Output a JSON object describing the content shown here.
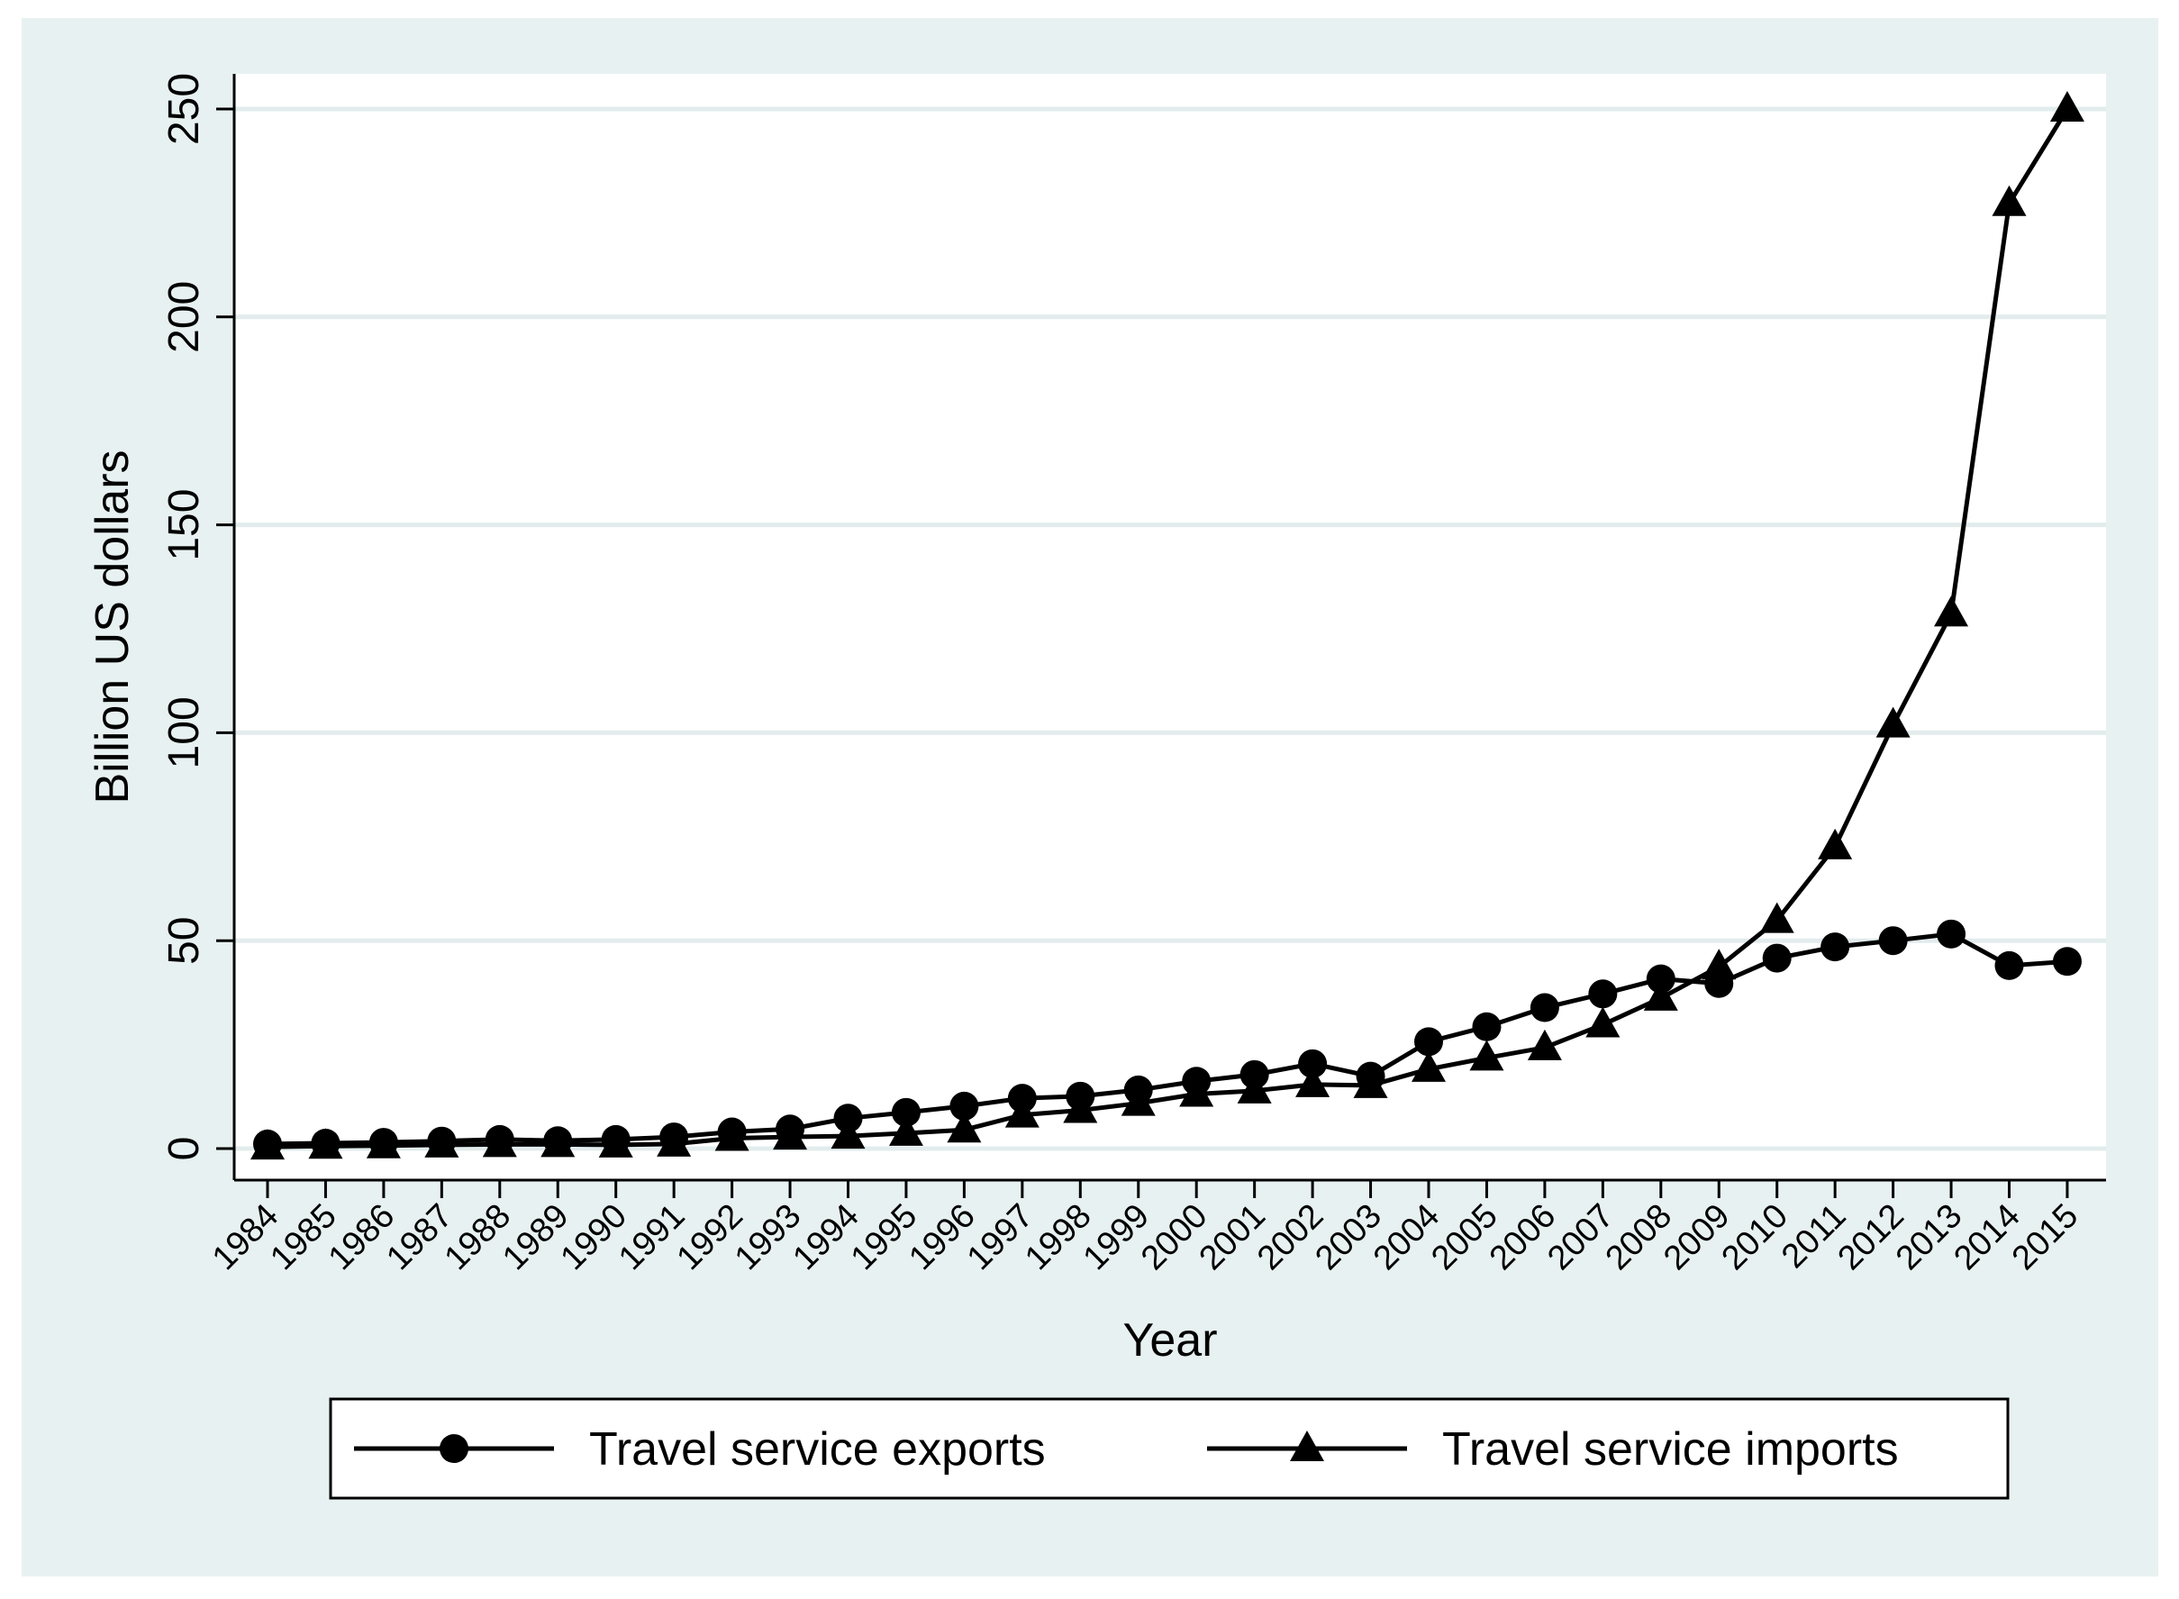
{
  "chart_data": {
    "type": "line",
    "title": "",
    "xlabel": "Year",
    "ylabel": "Billion US dollars",
    "ylim": [
      0,
      250
    ],
    "yticks": [
      "0",
      "50",
      "100",
      "150",
      "200",
      "250"
    ],
    "grid": true,
    "legend_position": "bottom",
    "categories": [
      "1984",
      "1985",
      "1986",
      "1987",
      "1988",
      "1989",
      "1990",
      "1991",
      "1992",
      "1993",
      "1994",
      "1995",
      "1996",
      "1997",
      "1998",
      "1999",
      "2000",
      "2001",
      "2002",
      "2003",
      "2004",
      "2005",
      "2006",
      "2007",
      "2008",
      "2009",
      "2010",
      "2011",
      "2012",
      "2013",
      "2014",
      "2015"
    ],
    "series": [
      {
        "name": "Travel service exports",
        "marker": "circle",
        "values": [
          1.1,
          1.3,
          1.5,
          1.8,
          2.2,
          1.9,
          2.2,
          2.8,
          4.0,
          4.7,
          7.3,
          8.7,
          10.2,
          12.1,
          12.6,
          14.1,
          16.2,
          17.8,
          20.4,
          17.4,
          25.7,
          29.3,
          33.9,
          37.2,
          40.8,
          39.7,
          45.8,
          48.5,
          50.0,
          51.6,
          44.0,
          45.0
        ]
      },
      {
        "name": "Travel service imports",
        "marker": "triangle",
        "values": [
          0.4,
          0.6,
          0.7,
          0.9,
          1.0,
          1.0,
          0.9,
          1.1,
          2.5,
          2.8,
          3.0,
          3.7,
          4.5,
          8.1,
          9.2,
          10.9,
          13.1,
          13.9,
          15.4,
          15.2,
          19.1,
          21.8,
          24.3,
          29.8,
          36.2,
          43.7,
          54.9,
          72.6,
          101.9,
          128.6,
          227.3,
          250.0
        ]
      }
    ]
  }
}
